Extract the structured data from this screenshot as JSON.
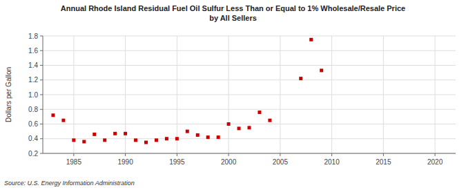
{
  "chart_data": {
    "type": "scatter",
    "title": "Annual Rhode Island Residual Fuel Oil Sulfur Less Than or Equal to 1% Wholesale/Resale Price\nby All Sellers",
    "ylabel": "Dollars per Gallon",
    "source": "Source: U.S. Energy Information Administration",
    "x": [
      1983,
      1984,
      1985,
      1986,
      1987,
      1988,
      1989,
      1990,
      1991,
      1992,
      1993,
      1994,
      1995,
      1996,
      1997,
      1998,
      1999,
      2000,
      2001,
      2002,
      2003,
      2004,
      2007,
      2008,
      2009
    ],
    "values": [
      0.72,
      0.65,
      0.38,
      0.36,
      0.46,
      0.38,
      0.47,
      0.47,
      0.38,
      0.35,
      0.38,
      0.4,
      0.4,
      0.5,
      0.45,
      0.42,
      0.42,
      0.6,
      0.54,
      0.55,
      0.76,
      0.65,
      1.22,
      1.75,
      1.33
    ],
    "color": "#cc0000",
    "marker": "square",
    "xlim": [
      1982,
      2022
    ],
    "ylim": [
      0.2,
      1.8
    ],
    "xticks": [
      1985,
      1990,
      1995,
      2000,
      2005,
      2010,
      2015,
      2020
    ],
    "yticks": [
      0.2,
      0.4,
      0.6,
      0.8,
      {
        "value": 1.0,
        "label": "1.0"
      },
      1.2,
      1.4,
      1.6,
      1.8
    ],
    "grid": true
  }
}
